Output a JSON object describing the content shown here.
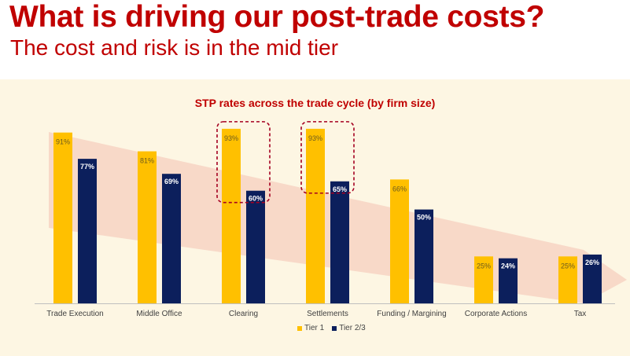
{
  "header": {
    "title": "What is driving our post-trade costs?",
    "subtitle": "The cost and risk is in the mid tier"
  },
  "colors": {
    "title_red": "#c00000",
    "tier1": "#ffc000",
    "tier23": "#0c1f5c",
    "panel": "#fdf6e3",
    "highlight_box": "#a50021",
    "trend_arrow": "#f7d3c3"
  },
  "legend": {
    "tier1_label": "Tier 1",
    "tier23_label": "Tier 2/3"
  },
  "chart_data": {
    "type": "bar",
    "title": "STP rates across the trade cycle (by firm size)",
    "categories": [
      "Trade Execution",
      "Middle Office",
      "Clearing",
      "Settlements",
      "Funding / Margining",
      "Corporate Actions",
      "Tax"
    ],
    "series": [
      {
        "name": "Tier 1",
        "values": [
          91,
          81,
          93,
          93,
          66,
          25,
          25
        ],
        "labels": [
          "91%",
          "81%",
          "93%",
          "93%",
          "66%",
          "25%",
          "25%"
        ]
      },
      {
        "name": "Tier 2/3",
        "values": [
          77,
          69,
          60,
          65,
          50,
          24,
          26
        ],
        "labels": [
          "77%",
          "69%",
          "60%",
          "65%",
          "50%",
          "24%",
          "26%"
        ]
      }
    ],
    "ylim": [
      0,
      100
    ],
    "grid": false,
    "legend_position": "bottom",
    "highlighted_categories": [
      "Clearing",
      "Settlements"
    ]
  }
}
